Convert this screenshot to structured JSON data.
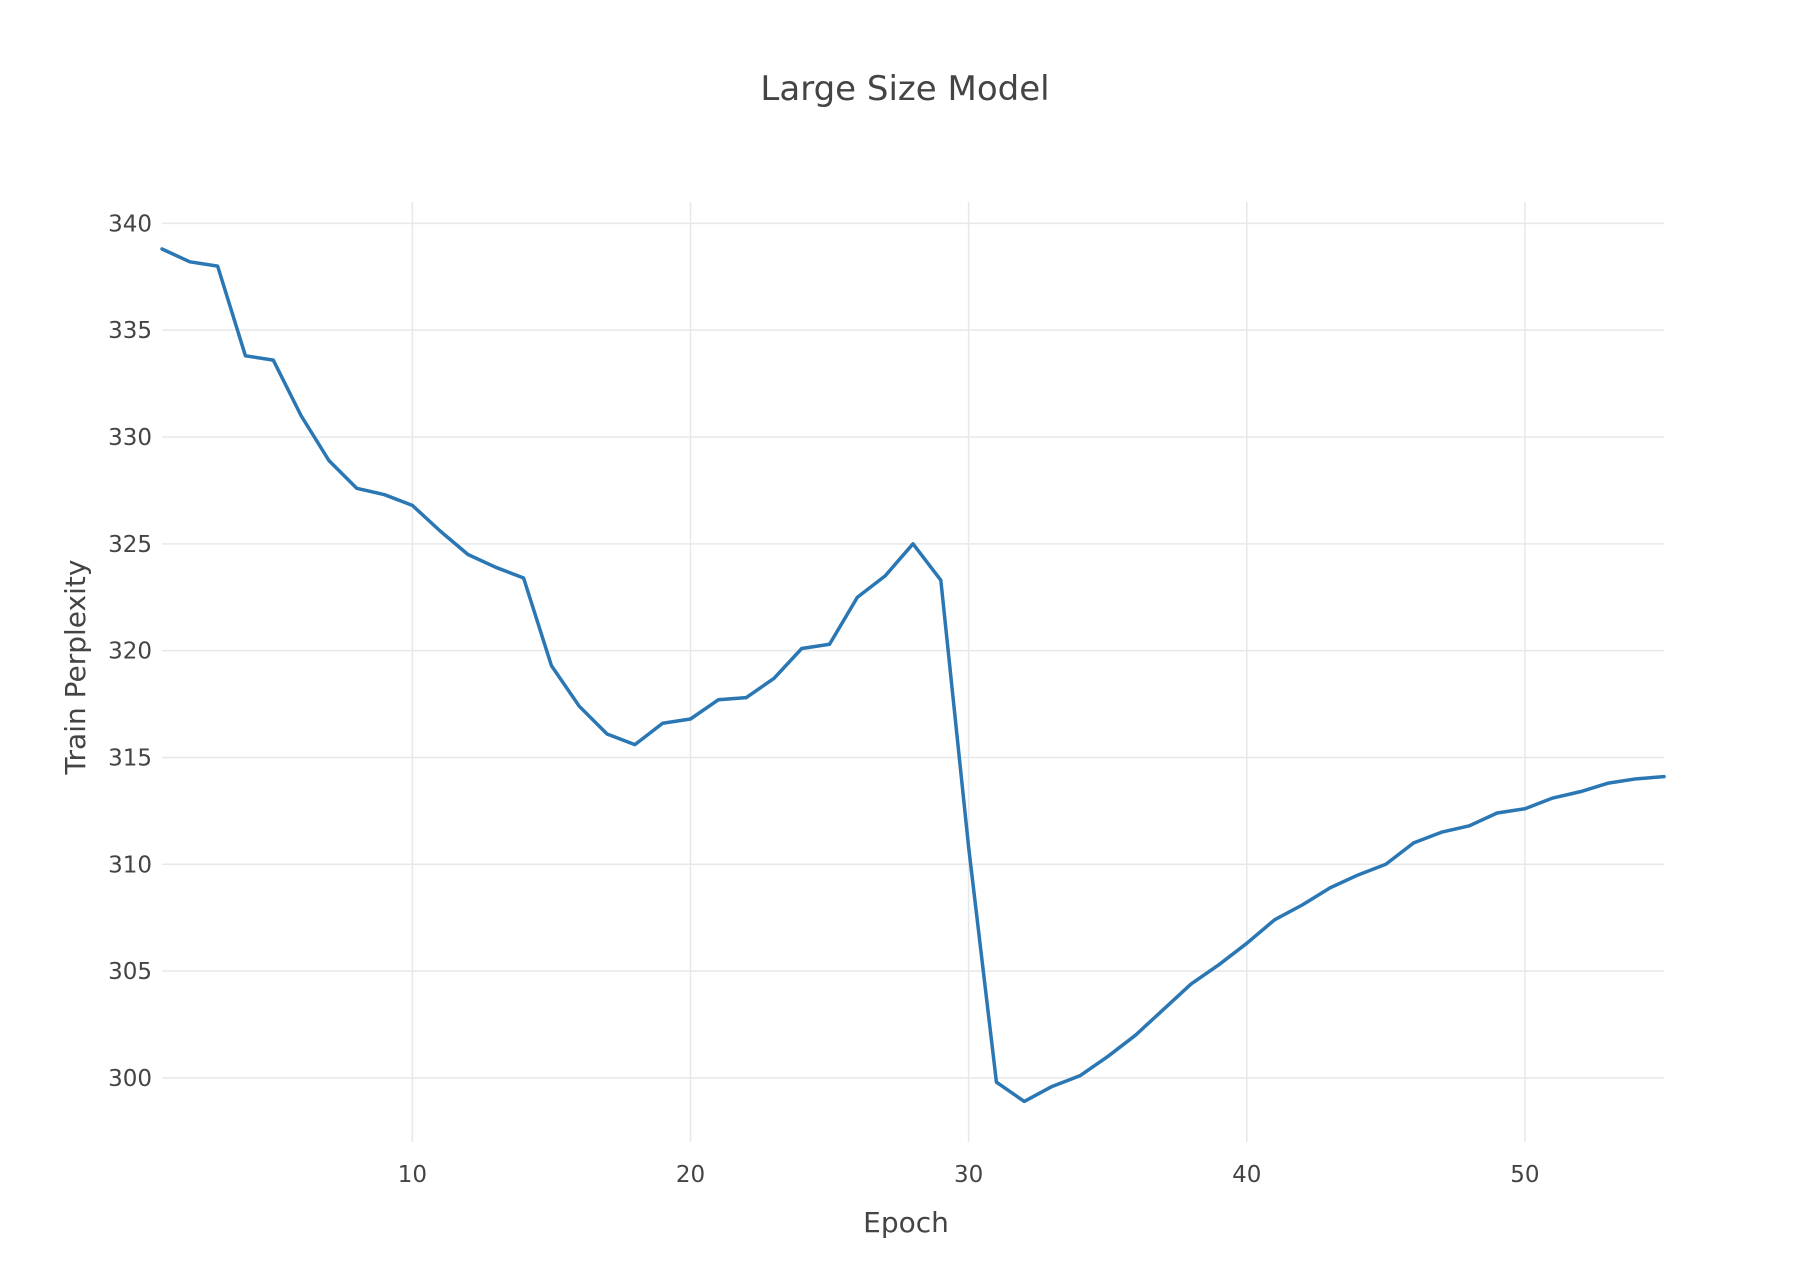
{
  "chart_data": {
    "type": "line",
    "title": "Large Size Model",
    "xlabel": "Epoch",
    "ylabel": "Train Perplexity",
    "xlim": [
      1,
      55
    ],
    "ylim": [
      297,
      341
    ],
    "x_ticks": [
      10,
      20,
      30,
      40,
      50
    ],
    "y_ticks": [
      300,
      305,
      310,
      315,
      320,
      325,
      330,
      335,
      340
    ],
    "grid": true,
    "legend": "none",
    "colors": {
      "line": "#2a77b4",
      "grid": "#e8e8e8",
      "text": "#444444"
    },
    "series": [
      {
        "x": [
          1,
          2,
          3,
          4,
          5,
          6,
          7,
          8,
          9,
          10,
          11,
          12,
          13,
          14,
          15,
          16,
          17,
          18,
          19,
          20,
          21,
          22,
          23,
          24,
          25,
          26,
          27,
          28,
          29,
          30,
          31,
          32,
          33,
          34,
          35,
          36,
          37,
          38,
          39,
          40,
          41,
          42,
          43,
          44,
          45,
          46,
          47,
          48,
          49,
          50,
          51,
          52,
          53,
          54,
          55
        ],
        "values": [
          338.8,
          338.2,
          338.0,
          333.8,
          333.6,
          331.0,
          328.9,
          327.6,
          327.3,
          326.8,
          325.6,
          324.5,
          323.9,
          323.4,
          319.3,
          317.4,
          316.1,
          315.6,
          316.6,
          316.8,
          317.7,
          317.8,
          318.7,
          320.1,
          320.3,
          322.5,
          323.5,
          325.0,
          323.3,
          310.8,
          299.8,
          298.9,
          299.6,
          300.1,
          301.0,
          302.0,
          303.2,
          304.4,
          305.3,
          306.3,
          307.4,
          308.1,
          308.9,
          309.5,
          310.0,
          311.0,
          311.5,
          311.8,
          312.4,
          312.6,
          313.1,
          313.4,
          313.8,
          314.0,
          314.1
        ]
      }
    ]
  }
}
